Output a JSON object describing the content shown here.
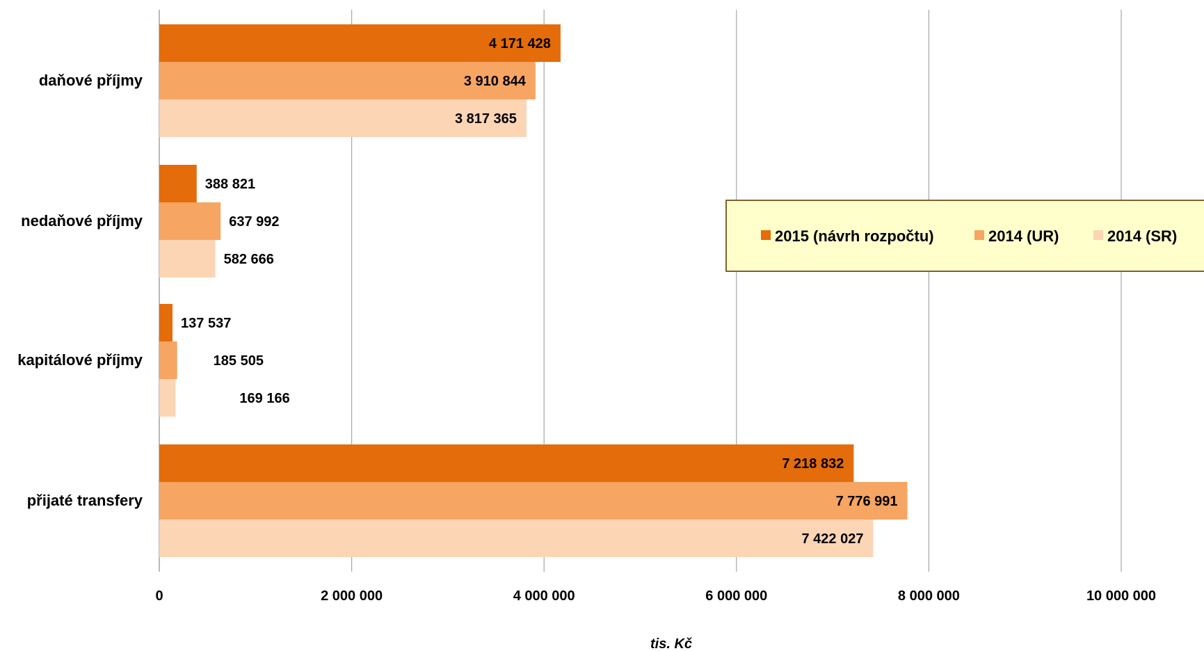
{
  "chart_data": {
    "type": "bar",
    "orientation": "horizontal",
    "categories": [
      "daňové příjmy",
      "nedaňové příjmy",
      "kapitálové příjmy",
      "přijaté transfery"
    ],
    "series": [
      {
        "name": "2015 (návrh rozpočtu)",
        "color": "#E46C0A",
        "values": [
          4171428,
          388821,
          137537,
          7218832
        ],
        "labels": [
          "4 171 428",
          "388 821",
          "137 537",
          "7 218 832"
        ]
      },
      {
        "name": "2014 (UR)",
        "color": "#F6A563",
        "values": [
          3910844,
          637992,
          185505,
          7776991
        ],
        "labels": [
          "3 910 844",
          "637 992",
          "185 505",
          "7 776 991"
        ]
      },
      {
        "name": "2014 (SR)",
        "color": "#FCD5B5",
        "values": [
          3817365,
          582666,
          169166,
          7422027
        ],
        "labels": [
          "3 817 365",
          "582 666",
          "169 166",
          "7 422 027"
        ]
      }
    ],
    "xlim": [
      0,
      10000000
    ],
    "xticks": [
      0,
      2000000,
      4000000,
      6000000,
      8000000,
      10000000
    ],
    "xtick_labels": [
      "0",
      "2 000 000",
      "4 000 000",
      "6 000 000",
      "8 000 000",
      "10 000 000"
    ],
    "xlabel": "tis. Kč",
    "grid": true,
    "legend_position": "right",
    "legend_background": "#FFFFCC",
    "legend_border": "#7F5F2F"
  }
}
